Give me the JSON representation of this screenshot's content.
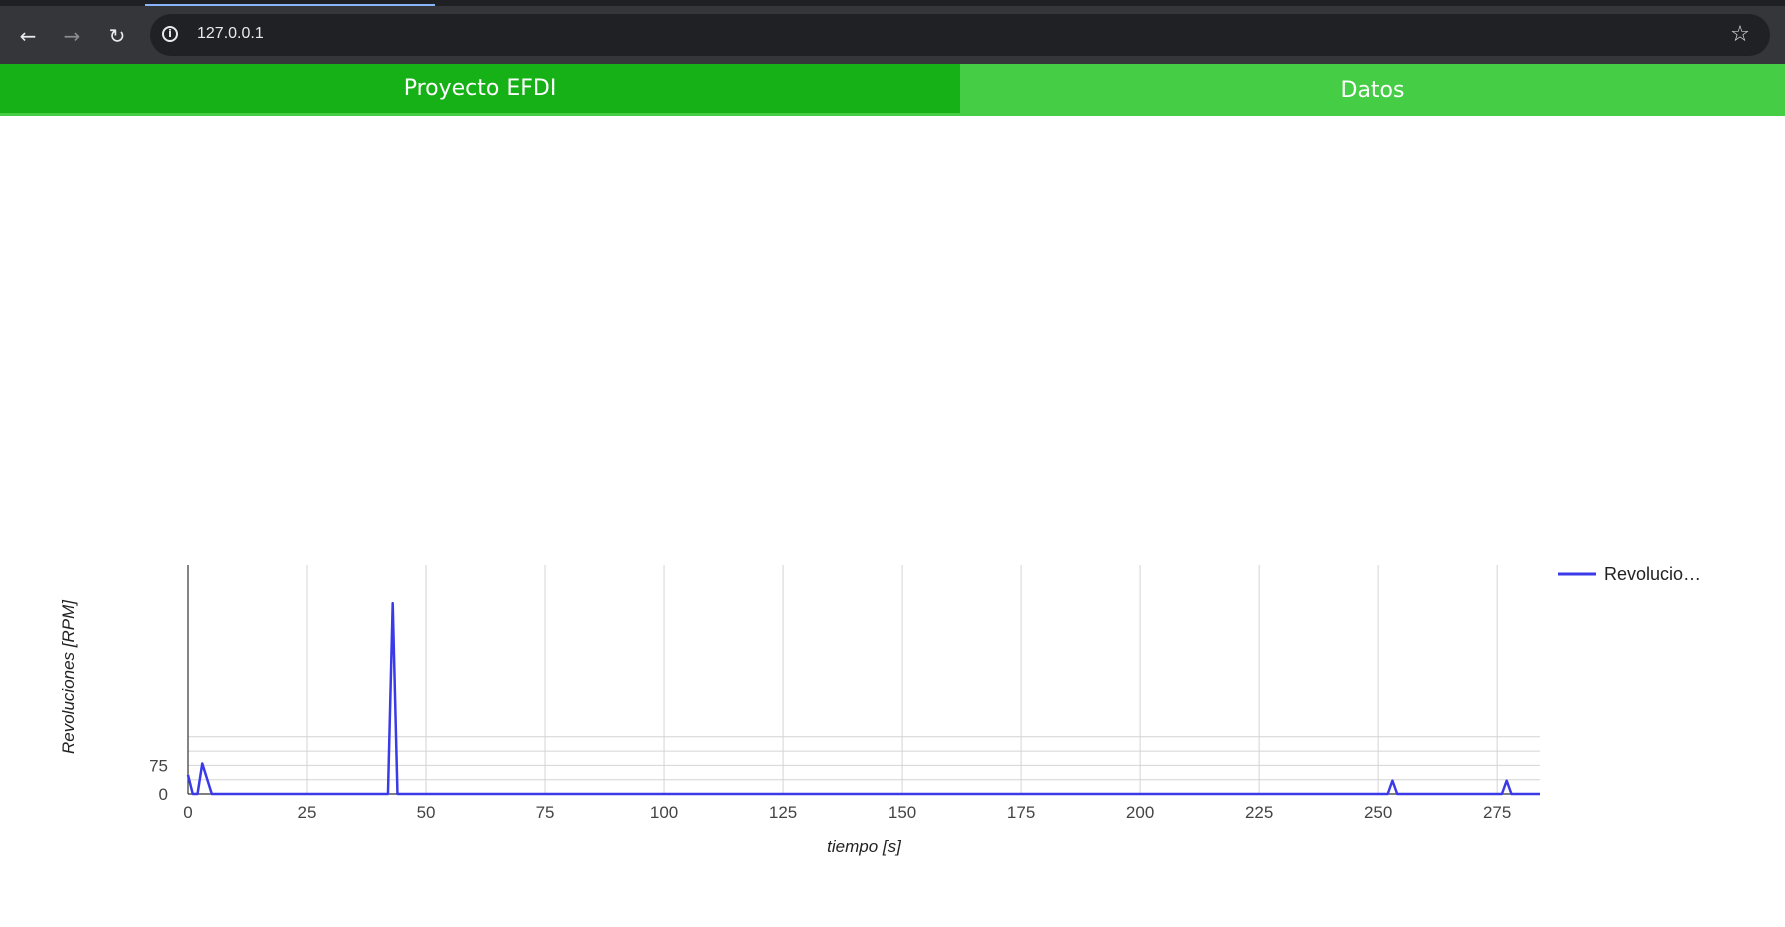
{
  "browser": {
    "url": "127.0.0.1",
    "back_icon": "arrow-left-icon",
    "forward_icon": "arrow-right-icon",
    "reload_icon": "reload-icon",
    "info_icon": "info-icon",
    "bookmark_icon": "star-icon"
  },
  "nav": {
    "tabs": [
      {
        "label": "Proyecto EFDI",
        "active": true
      },
      {
        "label": "Datos",
        "active": false
      }
    ],
    "active_color": "#16b116",
    "inactive_color": "#45cd45"
  },
  "chart_data": {
    "type": "line",
    "xlabel": "tiempo [s]",
    "ylabel": "Revoluciones [RPM]",
    "x_ticks": [
      0,
      25,
      50,
      75,
      100,
      125,
      150,
      175,
      200,
      225,
      250,
      275
    ],
    "y_ticks": [
      0,
      75
    ],
    "xlim": [
      0,
      284
    ],
    "ylim": [
      0,
      600
    ],
    "grid": true,
    "legend_position": "right",
    "series": [
      {
        "name": "Revolucio…",
        "color": "#3a3ae8",
        "x": [
          0,
          1,
          2,
          3,
          4,
          5,
          6,
          42,
          43,
          44,
          45,
          252,
          253,
          254,
          276,
          277,
          278,
          284
        ],
        "y": [
          50,
          0,
          0,
          80,
          40,
          0,
          0,
          0,
          500,
          0,
          0,
          0,
          35,
          0,
          0,
          35,
          0,
          0
        ]
      }
    ]
  }
}
